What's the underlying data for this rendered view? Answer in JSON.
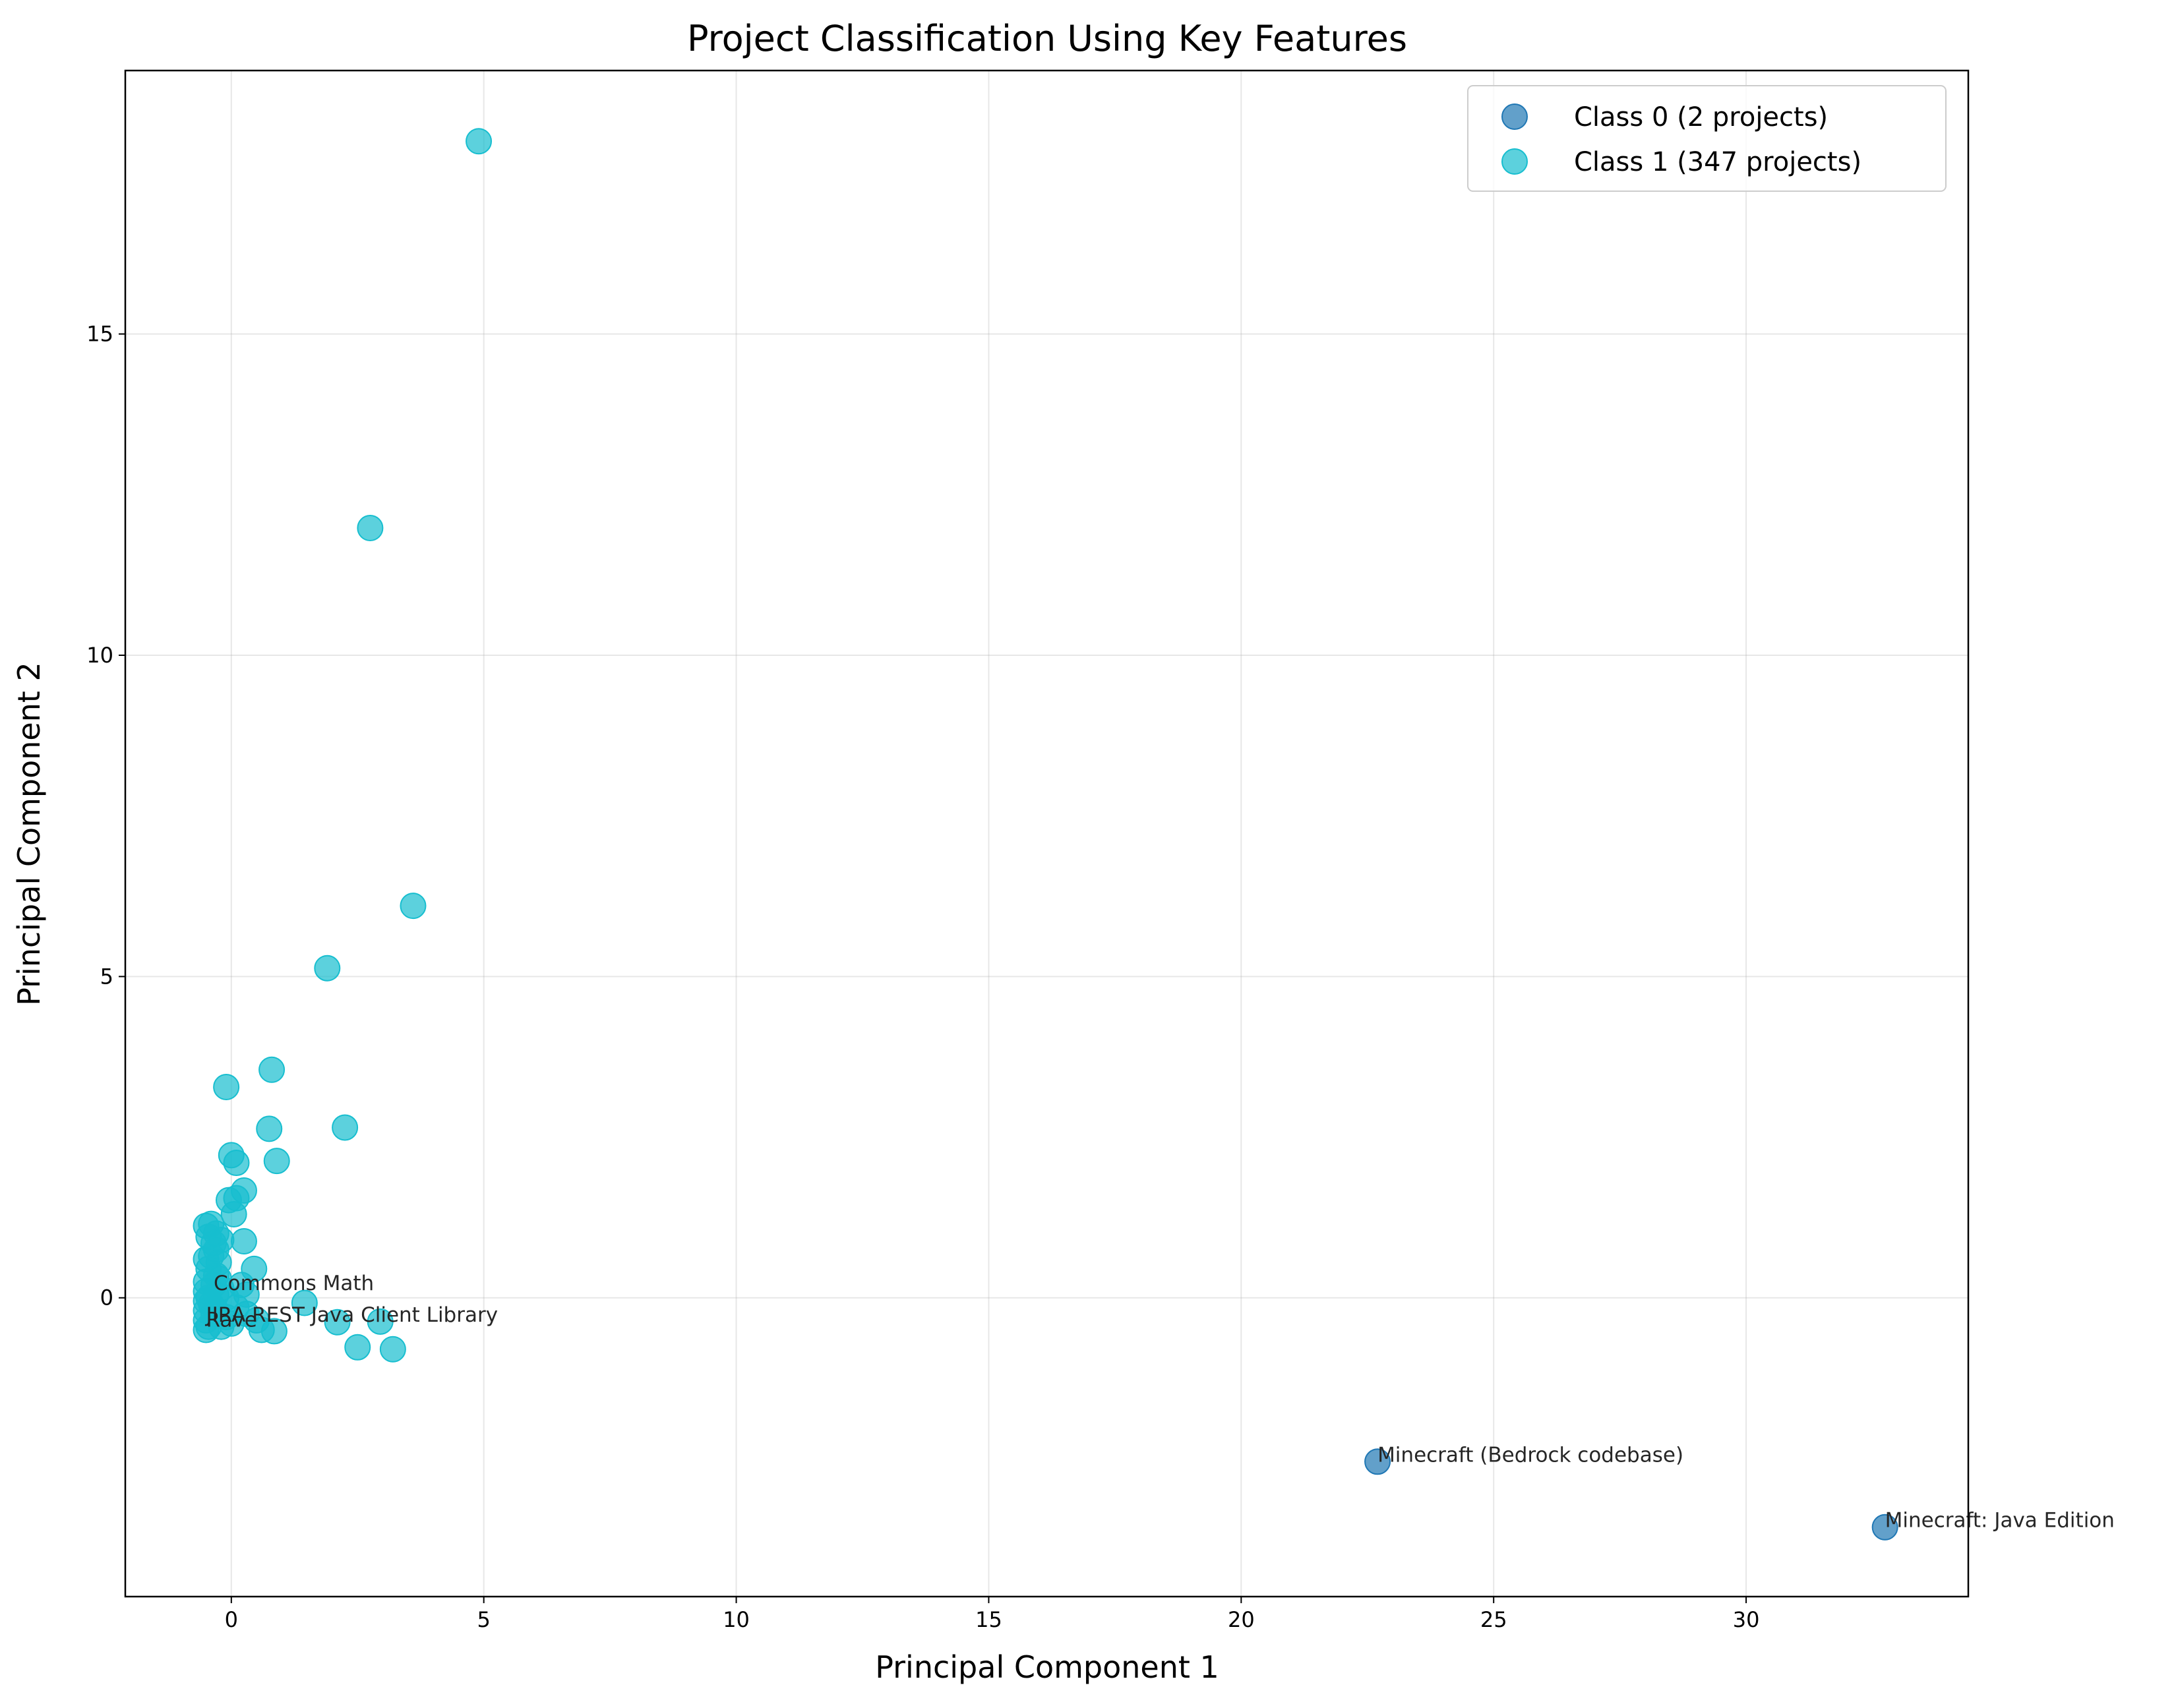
{
  "chart_data": {
    "type": "scatter",
    "title": "Project Classification Using Key Features",
    "xlabel": "Principal Component 1",
    "ylabel": "Principal Component 2",
    "xlim": [
      -2.1,
      34.4
    ],
    "ylim": [
      -4.65,
      19.1
    ],
    "xticks": [
      0,
      5,
      10,
      15,
      20,
      25,
      30
    ],
    "yticks": [
      0,
      5,
      10,
      15
    ],
    "grid": true,
    "legend_position": "top-right",
    "series": [
      {
        "name": "Class 0 (2 projects)",
        "color": "#1f77b4",
        "points": [
          [
            22.7,
            -2.55
          ],
          [
            32.75,
            -3.57
          ]
        ]
      },
      {
        "name": "Class 1 (347 projects)",
        "color": "#17becf",
        "points": [
          [
            4.9,
            18.0
          ],
          [
            2.75,
            11.98
          ],
          [
            3.6,
            6.1
          ],
          [
            1.9,
            5.13
          ],
          [
            0.8,
            3.55
          ],
          [
            -0.1,
            3.28
          ],
          [
            0.75,
            2.63
          ],
          [
            2.25,
            2.65
          ],
          [
            0.0,
            2.22
          ],
          [
            0.1,
            2.1
          ],
          [
            0.9,
            2.13
          ],
          [
            0.25,
            1.67
          ],
          [
            0.1,
            1.55
          ],
          [
            -0.05,
            1.52
          ],
          [
            0.05,
            1.3
          ],
          [
            -0.5,
            1.12
          ],
          [
            -0.4,
            1.15
          ],
          [
            -0.3,
            1.0
          ],
          [
            -0.45,
            0.95
          ],
          [
            -0.35,
            0.85
          ],
          [
            -0.2,
            0.9
          ],
          [
            0.25,
            0.88
          ],
          [
            -0.3,
            0.75
          ],
          [
            -0.4,
            0.65
          ],
          [
            -0.5,
            0.6
          ],
          [
            -0.25,
            0.55
          ],
          [
            -0.45,
            0.45
          ],
          [
            -0.3,
            0.35
          ],
          [
            0.45,
            0.45
          ],
          [
            -0.5,
            0.25
          ],
          [
            -0.35,
            0.2
          ],
          [
            -0.2,
            0.15
          ],
          [
            0.2,
            0.2
          ],
          [
            -0.5,
            0.1
          ],
          [
            -0.3,
            0.05
          ],
          [
            -0.1,
            0.0
          ],
          [
            0.3,
            0.05
          ],
          [
            -0.5,
            -0.05
          ],
          [
            -0.4,
            -0.1
          ],
          [
            1.45,
            -0.08
          ],
          [
            -0.5,
            -0.2
          ],
          [
            -0.35,
            -0.25
          ],
          [
            -0.1,
            -0.3
          ],
          [
            0.3,
            -0.25
          ],
          [
            -0.5,
            -0.35
          ],
          [
            -0.45,
            -0.45
          ],
          [
            -0.2,
            -0.45
          ],
          [
            0.5,
            -0.35
          ],
          [
            0.6,
            -0.5
          ],
          [
            0.85,
            -0.52
          ],
          [
            2.1,
            -0.38
          ],
          [
            2.95,
            -0.37
          ],
          [
            2.5,
            -0.77
          ],
          [
            3.2,
            -0.8
          ],
          [
            -0.5,
            -0.5
          ],
          [
            -0.3,
            -0.2
          ],
          [
            0.0,
            -0.4
          ],
          [
            0.1,
            -0.15
          ],
          [
            -0.45,
            0.0
          ],
          [
            -0.25,
            0.3
          ]
        ]
      }
    ],
    "annotations": [
      {
        "text": "Commons Math",
        "x": -0.35,
        "y": 0.12
      },
      {
        "text": "JIRA REST Java Client Library",
        "x": -0.5,
        "y": -0.37
      },
      {
        "text": "Rave",
        "x": -0.5,
        "y": -0.45
      },
      {
        "text": "Minecraft (Bedrock codebase)",
        "x": 22.7,
        "y": -2.55
      },
      {
        "text": "Minecraft: Java Edition",
        "x": 32.75,
        "y": -3.57
      }
    ]
  }
}
